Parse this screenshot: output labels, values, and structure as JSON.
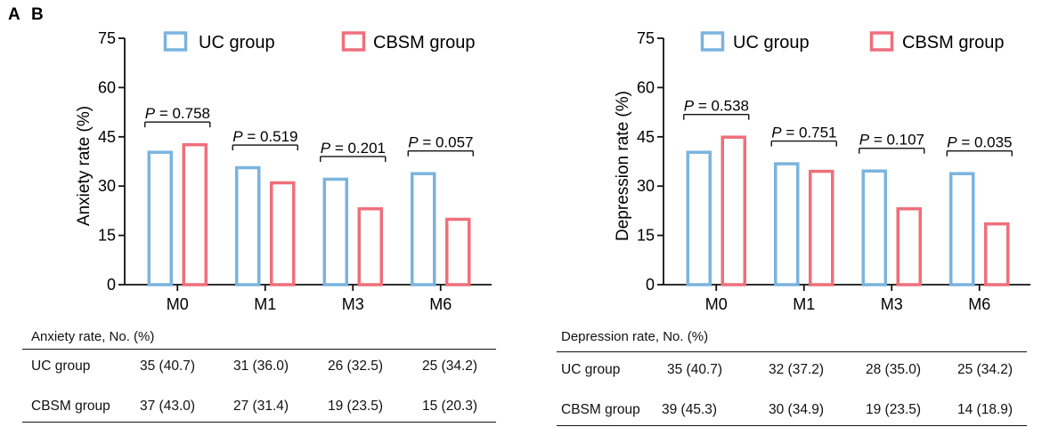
{
  "panels": [
    {
      "id": "a",
      "letter": "A",
      "table_caption": "Anxiety rate, No. (%)",
      "table_rows": [
        {
          "label": "UC group",
          "cells": [
            "35 (40.7)",
            "31 (36.0)",
            "26 (32.5)",
            "25 (34.2)"
          ]
        },
        {
          "label": "CBSM group",
          "cells": [
            "37 (43.0)",
            "27 (31.4)",
            "19 (23.5)",
            "15 (20.3)"
          ]
        }
      ]
    },
    {
      "id": "b",
      "letter": "B",
      "table_caption": "Depression rate, No. (%)",
      "table_rows": [
        {
          "label": "UC group",
          "cells": [
            "35 (40.7)",
            "32 (37.2)",
            "28 (35.0)",
            "25 (34.2)"
          ]
        },
        {
          "label": "CBSM group",
          "cells": [
            "39 (45.3)",
            "30 (34.9)",
            "19 (23.5)",
            "14 (18.9)"
          ]
        }
      ]
    }
  ],
  "colors": {
    "uc": "#7ab4de",
    "cbsm": "#ef6f7a",
    "axis": "#111111"
  },
  "chart_data": [
    {
      "type": "bar",
      "panel": "A",
      "title": "",
      "xlabel": "",
      "ylabel": "Anxiety rate (%)",
      "ylim": [
        0,
        75
      ],
      "yticks": [
        0,
        15,
        30,
        45,
        60,
        75
      ],
      "categories": [
        "M0",
        "M1",
        "M3",
        "M6"
      ],
      "series": [
        {
          "name": "UC group",
          "values": [
            40.7,
            36.0,
            32.5,
            34.2
          ]
        },
        {
          "name": "CBSM group",
          "values": [
            43.0,
            31.4,
            23.5,
            20.3
          ]
        }
      ],
      "p_values": [
        "P = 0.758",
        "P = 0.519",
        "P = 0.201",
        "P = 0.057"
      ],
      "legend": "top"
    },
    {
      "type": "bar",
      "panel": "B",
      "title": "",
      "xlabel": "",
      "ylabel": "Depression rate (%)",
      "ylim": [
        0,
        75
      ],
      "yticks": [
        0,
        15,
        30,
        45,
        60,
        75
      ],
      "categories": [
        "M0",
        "M1",
        "M3",
        "M6"
      ],
      "series": [
        {
          "name": "UC group",
          "values": [
            40.7,
            37.2,
            35.0,
            34.2
          ]
        },
        {
          "name": "CBSM group",
          "values": [
            45.3,
            34.9,
            23.5,
            18.9
          ]
        }
      ],
      "p_values": [
        "P = 0.538",
        "P = 0.751",
        "P = 0.107",
        "P = 0.035"
      ],
      "legend": "top"
    }
  ]
}
